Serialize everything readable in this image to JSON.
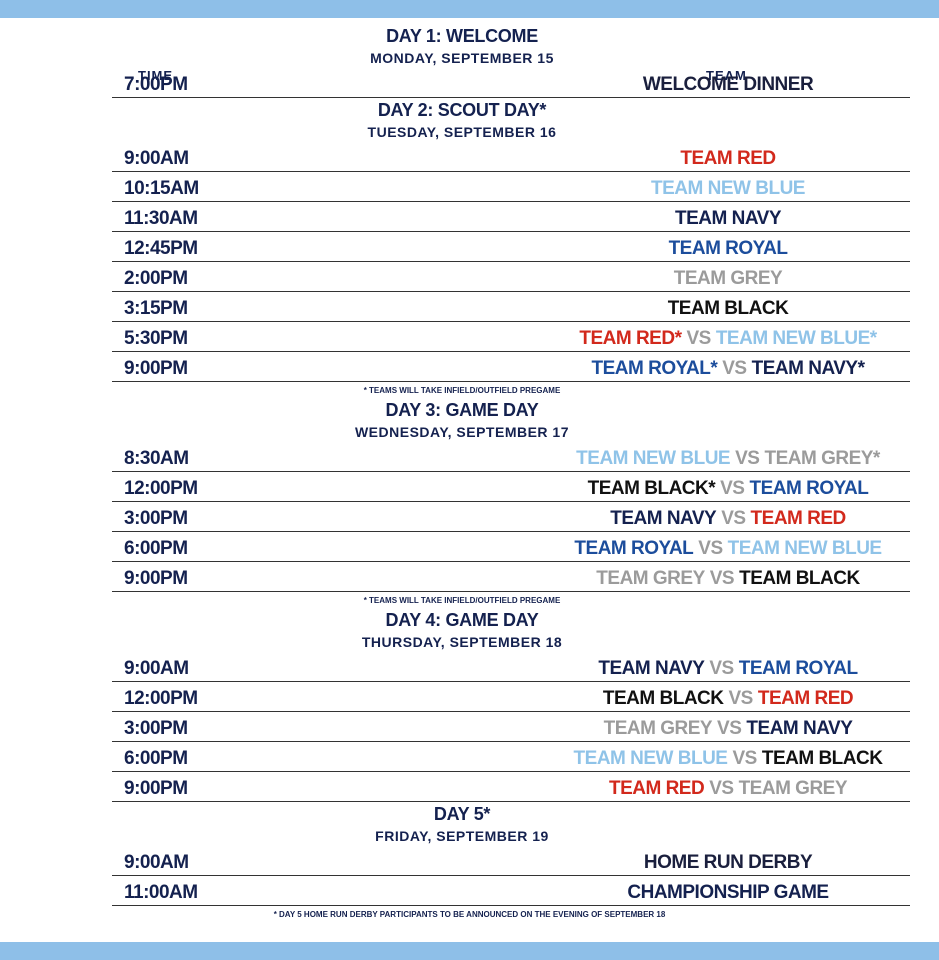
{
  "days": [
    {
      "title": "DAY 1: WELCOME",
      "date": "MONDAY, SEPTEMBER 15",
      "columns": {
        "time": "TIME",
        "team": "TEAM"
      },
      "rows": [
        {
          "time": "7:00PM",
          "team": [
            {
              "text": "WELCOME DINNER",
              "color": "#1a1f3d"
            }
          ]
        }
      ]
    },
    {
      "title": "DAY 2: SCOUT DAY*",
      "date": "TUESDAY, SEPTEMBER 16",
      "rows": [
        {
          "time": "9:00AM",
          "team": [
            {
              "text": "TEAM RED",
              "color": "#d2291c"
            }
          ]
        },
        {
          "time": "10:15AM",
          "team": [
            {
              "text": "TEAM NEW BLUE",
              "color": "#8fc3e8"
            }
          ]
        },
        {
          "time": "11:30AM",
          "team": [
            {
              "text": "TEAM NAVY",
              "color": "#14214f"
            }
          ]
        },
        {
          "time": "12:45PM",
          "team": [
            {
              "text": "TEAM ROYAL",
              "color": "#1c4d9c"
            }
          ]
        },
        {
          "time": "2:00PM",
          "team": [
            {
              "text": "TEAM GREY",
              "color": "#9b9b9b"
            }
          ]
        },
        {
          "time": "3:15PM",
          "team": [
            {
              "text": "TEAM BLACK",
              "color": "#111111"
            }
          ]
        },
        {
          "time": "5:30PM",
          "team": [
            {
              "text": "TEAM RED*",
              "color": "#d2291c"
            },
            {
              "text": "VS",
              "color": "#9b9b9b"
            },
            {
              "text": "TEAM NEW BLUE*",
              "color": "#8fc3e8"
            }
          ]
        },
        {
          "time": "9:00PM",
          "team": [
            {
              "text": "TEAM ROYAL*",
              "color": "#1c4d9c"
            },
            {
              "text": "VS",
              "color": "#9b9b9b"
            },
            {
              "text": "TEAM NAVY*",
              "color": "#14214f"
            }
          ]
        }
      ],
      "note": "* TEAMS WILL TAKE INFIELD/OUTFIELD PREGAME"
    },
    {
      "title": "DAY 3: GAME DAY",
      "date": "WEDNESDAY, SEPTEMBER 17",
      "rows": [
        {
          "time": "8:30AM",
          "team": [
            {
              "text": "TEAM NEW BLUE",
              "color": "#8fc3e8"
            },
            {
              "text": "VS",
              "color": "#9b9b9b"
            },
            {
              "text": "TEAM GREY*",
              "color": "#9b9b9b"
            }
          ]
        },
        {
          "time": "12:00PM",
          "team": [
            {
              "text": "TEAM BLACK*",
              "color": "#111111"
            },
            {
              "text": "VS",
              "color": "#9b9b9b"
            },
            {
              "text": "TEAM ROYAL",
              "color": "#1c4d9c"
            }
          ]
        },
        {
          "time": "3:00PM",
          "team": [
            {
              "text": "TEAM NAVY",
              "color": "#14214f"
            },
            {
              "text": "VS",
              "color": "#9b9b9b"
            },
            {
              "text": "TEAM RED",
              "color": "#d2291c"
            }
          ]
        },
        {
          "time": "6:00PM",
          "team": [
            {
              "text": "TEAM ROYAL",
              "color": "#1c4d9c"
            },
            {
              "text": "VS",
              "color": "#9b9b9b"
            },
            {
              "text": "TEAM NEW BLUE",
              "color": "#8fc3e8"
            }
          ]
        },
        {
          "time": "9:00PM",
          "team": [
            {
              "text": "TEAM GREY",
              "color": "#9b9b9b"
            },
            {
              "text": "VS",
              "color": "#9b9b9b"
            },
            {
              "text": "TEAM BLACK",
              "color": "#111111"
            }
          ]
        }
      ],
      "note": "* TEAMS WILL TAKE INFIELD/OUTFIELD PREGAME"
    },
    {
      "title": "DAY 4: GAME DAY",
      "date": "THURSDAY, SEPTEMBER 18",
      "rows": [
        {
          "time": "9:00AM",
          "team": [
            {
              "text": "TEAM NAVY",
              "color": "#14214f"
            },
            {
              "text": "VS",
              "color": "#9b9b9b"
            },
            {
              "text": "TEAM ROYAL",
              "color": "#1c4d9c"
            }
          ]
        },
        {
          "time": "12:00PM",
          "team": [
            {
              "text": "TEAM BLACK",
              "color": "#111111"
            },
            {
              "text": "VS",
              "color": "#9b9b9b"
            },
            {
              "text": "TEAM RED",
              "color": "#d2291c"
            }
          ]
        },
        {
          "time": "3:00PM",
          "team": [
            {
              "text": "TEAM GREY",
              "color": "#9b9b9b"
            },
            {
              "text": "VS",
              "color": "#9b9b9b"
            },
            {
              "text": "TEAM NAVY",
              "color": "#14214f"
            }
          ]
        },
        {
          "time": "6:00PM",
          "team": [
            {
              "text": "TEAM NEW BLUE",
              "color": "#8fc3e8"
            },
            {
              "text": "VS",
              "color": "#9b9b9b"
            },
            {
              "text": "TEAM BLACK",
              "color": "#111111"
            }
          ]
        },
        {
          "time": "9:00PM",
          "team": [
            {
              "text": "TEAM RED",
              "color": "#d2291c"
            },
            {
              "text": "VS",
              "color": "#9b9b9b"
            },
            {
              "text": "TEAM GREY",
              "color": "#9b9b9b"
            }
          ]
        }
      ]
    },
    {
      "title": "DAY 5*",
      "date": "FRIDAY, SEPTEMBER 19",
      "rows": [
        {
          "time": "9:00AM",
          "team": [
            {
              "text": "HOME RUN DERBY",
              "color": "#1a1f3d"
            }
          ]
        },
        {
          "time": "11:00AM",
          "team": [
            {
              "text": "CHAMPIONSHIP GAME",
              "color": "#14214f"
            }
          ]
        }
      ]
    }
  ],
  "footnote": "* DAY 5 HOME RUN DERBY PARTICIPANTS TO BE ANNOUNCED ON THE EVENING OF SEPTEMBER 18"
}
